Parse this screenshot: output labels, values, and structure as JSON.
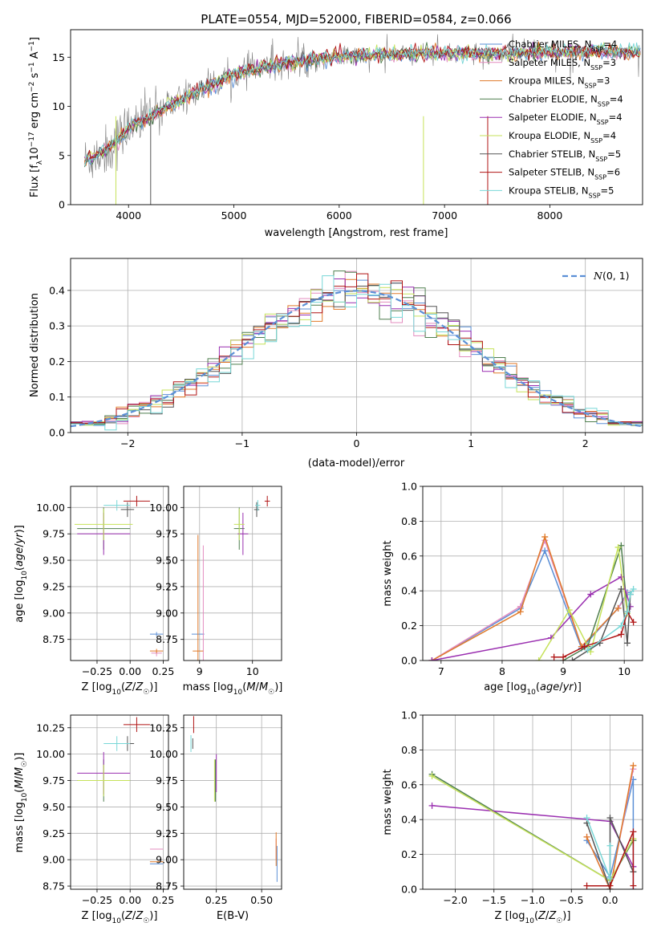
{
  "figure": {
    "title": "PLATE=0554, MJD=52000, FIBERID=0584, z=0.066"
  },
  "colors": {
    "chabrier_miles": "#5b8fd6",
    "salpeter_miles": "#e38cbf",
    "kroupa_miles": "#e07a2a",
    "chabrier_elodie": "#4f7f4f",
    "salpeter_elodie": "#9a2fb0",
    "kroupa_elodie": "#c6e25a",
    "chabrier_stelib": "#555555",
    "salpeter_stelib": "#b01515",
    "kroupa_stelib": "#78d7d7",
    "data": "#7f7f7f",
    "gaussian": "#5b8fd6"
  },
  "chart_data": [
    {
      "type": "line",
      "id": "spectrum",
      "xlabel": "wavelength [Angstrom, rest frame]",
      "ylabel": "Flux [f_λ 10^-17 erg cm^-2 s^-1 A^-1]",
      "xlim": [
        3450,
        8880
      ],
      "ylim": [
        0,
        17.8
      ],
      "xticks": [
        4000,
        5000,
        6000,
        7000,
        8000
      ],
      "yticks": [
        0,
        5,
        10,
        15
      ],
      "grid": false,
      "legend_position": "top-right",
      "legend": [
        {
          "label": "Chabrier MILES, N_SSP=4",
          "color_key": "chabrier_miles"
        },
        {
          "label": "Salpeter MILES, N_SSP=3",
          "color_key": "salpeter_miles"
        },
        {
          "label": "Kroupa MILES, N_SSP=3",
          "color_key": "kroupa_miles"
        },
        {
          "label": "Chabrier ELODIE, N_SSP=4",
          "color_key": "chabrier_elodie"
        },
        {
          "label": "Salpeter ELODIE, N_SSP=4",
          "color_key": "salpeter_elodie"
        },
        {
          "label": "Kroupa ELODIE, N_SSP=4",
          "color_key": "kroupa_elodie"
        },
        {
          "label": "Chabrier STELIB, N_SSP=5",
          "color_key": "chabrier_stelib"
        },
        {
          "label": "Salpeter STELIB, N_SSP=6",
          "color_key": "salpeter_stelib"
        },
        {
          "label": "Kroupa STELIB, N_SSP=5",
          "color_key": "kroupa_stelib"
        }
      ],
      "continuum": {
        "x": [
          3600,
          3800,
          4000,
          4200,
          4400,
          4600,
          4800,
          5000,
          5200,
          5500,
          5800,
          6000,
          6200,
          6500,
          7000,
          7500,
          8000,
          8500,
          8800
        ],
        "y": [
          4.5,
          5.6,
          7.8,
          8.9,
          10.2,
          11.2,
          12.3,
          13.2,
          13.8,
          14.4,
          14.8,
          15.0,
          15.2,
          15.3,
          15.4,
          15.4,
          15.5,
          15.6,
          15.6
        ]
      }
    },
    {
      "type": "bar",
      "id": "residuals",
      "xlabel": "(data-model)/error",
      "ylabel": "Normed distribution",
      "xlim": [
        -2.5,
        2.5
      ],
      "ylim": [
        0,
        0.49
      ],
      "xticks": [
        -2,
        -1,
        0,
        1,
        2
      ],
      "yticks": [
        0.0,
        0.1,
        0.2,
        0.3,
        0.4
      ],
      "grid": true,
      "legend_position": "top-right",
      "legend": [
        {
          "label": "N(0, 1)",
          "color_key": "gaussian",
          "style": "dashed"
        }
      ],
      "bin_width": 0.1,
      "bin_range": [
        -2.5,
        2.5
      ]
    },
    {
      "type": "scatter",
      "id": "age_vs_Z",
      "xlabel": "Z [log10(Z/Z☉)]",
      "ylabel": "age  [log10(age/yr)]",
      "xlim": [
        -0.45,
        0.29
      ],
      "ylim": [
        8.55,
        10.2
      ],
      "xticks": [
        -0.25,
        0.0,
        0.25
      ],
      "yticks": [
        8.75,
        9.0,
        9.25,
        9.5,
        9.75,
        10.0
      ],
      "grid": true,
      "points": [
        {
          "model": "chabrier_miles",
          "x": 0.2,
          "y": 8.8,
          "xerr": 0.05,
          "yerr": 0.02
        },
        {
          "model": "salpeter_miles",
          "x": 0.2,
          "y": 8.62,
          "xerr": 0.04,
          "yerr": 0.03
        },
        {
          "model": "kroupa_miles",
          "x": 0.2,
          "y": 8.64,
          "xerr": 0.05,
          "yerr": 0.02
        },
        {
          "model": "chabrier_elodie",
          "x": -0.2,
          "y": 9.8,
          "xerr": 0.2,
          "yerr": 0.2
        },
        {
          "model": "salpeter_elodie",
          "x": -0.2,
          "y": 9.75,
          "xerr": 0.2,
          "yerr": 0.2
        },
        {
          "model": "kroupa_elodie",
          "x": -0.2,
          "y": 9.84,
          "xerr": 0.22,
          "yerr": 0.15
        },
        {
          "model": "chabrier_stelib",
          "x": -0.02,
          "y": 9.98,
          "xerr": 0.05,
          "yerr": 0.07
        },
        {
          "model": "salpeter_stelib",
          "x": 0.05,
          "y": 10.06,
          "xerr": 0.1,
          "yerr": 0.05
        },
        {
          "model": "kroupa_stelib",
          "x": -0.1,
          "y": 10.02,
          "xerr": 0.1,
          "yerr": 0.05
        }
      ]
    },
    {
      "type": "scatter",
      "id": "age_vs_mass",
      "xlabel": "mass [log10(M/M☉)]",
      "ylabel": "",
      "xlim": [
        8.7,
        10.55
      ],
      "ylim": [
        8.55,
        10.2
      ],
      "xticks": [
        9,
        10
      ],
      "yticks": [
        8.75,
        9.0,
        9.25,
        9.5,
        9.75,
        10.0
      ],
      "grid": true,
      "points": [
        {
          "model": "chabrier_miles",
          "x": 8.97,
          "y": 8.8,
          "xerr": 0.12,
          "yerr": 0.0
        },
        {
          "model": "salpeter_miles",
          "x": 9.07,
          "y": 8.62,
          "xerr": 0.0,
          "yerr": 1.02
        },
        {
          "model": "kroupa_miles",
          "x": 8.97,
          "y": 8.64,
          "xerr": 0.1,
          "yerr": 1.1
        },
        {
          "model": "chabrier_elodie",
          "x": 9.75,
          "y": 9.8,
          "xerr": 0.1,
          "yerr": 0.2
        },
        {
          "model": "salpeter_elodie",
          "x": 9.82,
          "y": 9.75,
          "xerr": 0.1,
          "yerr": 0.2
        },
        {
          "model": "kroupa_elodie",
          "x": 9.75,
          "y": 9.84,
          "xerr": 0.1,
          "yerr": 0.15
        },
        {
          "model": "chabrier_stelib",
          "x": 10.08,
          "y": 9.98,
          "xerr": 0.05,
          "yerr": 0.07
        },
        {
          "model": "salpeter_stelib",
          "x": 10.28,
          "y": 10.06,
          "xerr": 0.05,
          "yerr": 0.05
        },
        {
          "model": "kroupa_stelib",
          "x": 10.1,
          "y": 10.02,
          "xerr": 0.05,
          "yerr": 0.05
        }
      ]
    },
    {
      "type": "line",
      "id": "mass_weight_vs_age",
      "xlabel": "age  [log10(age/yr)]",
      "ylabel": "mass weight",
      "xlim": [
        6.7,
        10.3
      ],
      "ylim": [
        0,
        1.0
      ],
      "xticks": [
        7,
        8,
        9,
        10
      ],
      "yticks": [
        0.0,
        0.2,
        0.4,
        0.6,
        0.8,
        1.0
      ],
      "grid": true,
      "series": [
        {
          "model": "chabrier_miles",
          "x": [
            6.85,
            8.3,
            8.7,
            9.3,
            9.9,
            10.05
          ],
          "y": [
            0.0,
            0.3,
            0.63,
            0.07,
            0.3,
            0.39
          ]
        },
        {
          "model": "salpeter_miles",
          "x": [
            6.85,
            8.3,
            8.7,
            9.3,
            9.9,
            10.05
          ],
          "y": [
            0.0,
            0.31,
            0.69,
            0.08,
            0.3,
            0.38
          ]
        },
        {
          "model": "kroupa_miles",
          "x": [
            6.85,
            8.3,
            8.7,
            9.3,
            9.9
          ],
          "y": [
            0.0,
            0.28,
            0.71,
            0.08,
            0.3
          ]
        },
        {
          "model": "chabrier_elodie",
          "x": [
            9.0,
            9.4,
            9.95,
            10.05
          ],
          "y": [
            0.0,
            0.08,
            0.66,
            0.28
          ]
        },
        {
          "model": "salpeter_elodie",
          "x": [
            6.85,
            8.8,
            9.45,
            9.95,
            10.1
          ],
          "y": [
            0.0,
            0.13,
            0.38,
            0.48,
            0.31
          ]
        },
        {
          "model": "kroupa_elodie",
          "x": [
            8.6,
            9.1,
            9.45,
            9.9,
            10.05
          ],
          "y": [
            0.0,
            0.29,
            0.05,
            0.65,
            0.27
          ]
        },
        {
          "model": "chabrier_stelib",
          "x": [
            9.15,
            9.6,
            9.95,
            10.05,
            10.1
          ],
          "y": [
            0.0,
            0.1,
            0.41,
            0.1,
            0.38
          ]
        },
        {
          "model": "salpeter_stelib",
          "x": [
            8.85,
            9.0,
            9.35,
            9.95,
            10.05,
            10.15
          ],
          "y": [
            0.02,
            0.02,
            0.08,
            0.15,
            0.28,
            0.22
          ]
        },
        {
          "model": "kroupa_stelib",
          "x": [
            9.4,
            9.95,
            10.05,
            10.1,
            10.15
          ],
          "y": [
            0.06,
            0.2,
            0.28,
            0.38,
            0.41
          ]
        }
      ]
    },
    {
      "type": "scatter",
      "id": "mass_vs_Z",
      "xlabel": "Z [log10(Z/Z☉)]",
      "ylabel": "mass [log10(M/M☉)]",
      "xlim": [
        -0.45,
        0.29
      ],
      "ylim": [
        8.72,
        10.37
      ],
      "xticks": [
        -0.25,
        0.0,
        0.25
      ],
      "yticks": [
        8.75,
        9.0,
        9.25,
        9.5,
        9.75,
        10.0,
        10.25
      ],
      "grid": true,
      "points": [
        {
          "model": "chabrier_miles",
          "x": 0.2,
          "y": 8.96,
          "xerr": 0.05,
          "yerr": 0.0
        },
        {
          "model": "salpeter_miles",
          "x": 0.2,
          "y": 9.1,
          "xerr": 0.05,
          "yerr": 0.0
        },
        {
          "model": "kroupa_miles",
          "x": 0.2,
          "y": 8.98,
          "xerr": 0.05,
          "yerr": 0.0
        },
        {
          "model": "chabrier_elodie",
          "x": -0.2,
          "y": 9.75,
          "xerr": 0.2,
          "yerr": 0.2
        },
        {
          "model": "salpeter_elodie",
          "x": -0.2,
          "y": 9.82,
          "xerr": 0.2,
          "yerr": 0.2
        },
        {
          "model": "kroupa_elodie",
          "x": -0.2,
          "y": 9.75,
          "xerr": 0.2,
          "yerr": 0.15
        },
        {
          "model": "chabrier_stelib",
          "x": -0.02,
          "y": 10.1,
          "xerr": 0.05,
          "yerr": 0.07
        },
        {
          "model": "salpeter_stelib",
          "x": 0.05,
          "y": 10.28,
          "xerr": 0.1,
          "yerr": 0.07
        },
        {
          "model": "kroupa_stelib",
          "x": -0.1,
          "y": 10.1,
          "xerr": 0.1,
          "yerr": 0.07
        }
      ]
    },
    {
      "type": "scatter",
      "id": "mass_vs_ebv",
      "xlabel": "E(B-V)",
      "ylabel": "",
      "xlim": [
        0.07,
        0.61
      ],
      "ylim": [
        8.72,
        10.37
      ],
      "xticks": [
        0.25,
        0.5
      ],
      "yticks": [
        8.75,
        9.0,
        9.25,
        9.5,
        9.75,
        10.0,
        10.25
      ],
      "grid": true,
      "points": [
        {
          "model": "chabrier_miles",
          "x": 0.585,
          "y": 8.96,
          "xerr": 0.0,
          "yerr": 0.17
        },
        {
          "model": "salpeter_miles",
          "x": 0.58,
          "y": 9.1,
          "xerr": 0.0,
          "yerr": 0.1
        },
        {
          "model": "kroupa_miles",
          "x": 0.58,
          "y": 9.1,
          "xerr": 0.0,
          "yerr": 0.16
        },
        {
          "model": "chabrier_elodie",
          "x": 0.245,
          "y": 9.75,
          "xerr": 0.0,
          "yerr": 0.2
        },
        {
          "model": "salpeter_elodie",
          "x": 0.25,
          "y": 9.82,
          "xerr": 0.0,
          "yerr": 0.18
        },
        {
          "model": "kroupa_elodie",
          "x": 0.24,
          "y": 9.75,
          "xerr": 0.0,
          "yerr": 0.2
        },
        {
          "model": "chabrier_stelib",
          "x": 0.12,
          "y": 10.1,
          "xerr": 0.0,
          "yerr": 0.05
        },
        {
          "model": "salpeter_stelib",
          "x": 0.125,
          "y": 10.28,
          "xerr": 0.0,
          "yerr": 0.08
        },
        {
          "model": "kroupa_stelib",
          "x": 0.11,
          "y": 10.1,
          "xerr": 0.0,
          "yerr": 0.08
        }
      ]
    },
    {
      "type": "line",
      "id": "mass_weight_vs_Z",
      "xlabel": "Z [log10(Z/Z☉)]",
      "ylabel": "mass weight",
      "xlim": [
        -2.42,
        0.42
      ],
      "ylim": [
        0,
        1.0
      ],
      "xticks": [
        -2.0,
        -1.5,
        -1.0,
        -0.5,
        0.0
      ],
      "yticks": [
        0.0,
        0.2,
        0.4,
        0.6,
        0.8,
        1.0
      ],
      "grid": true,
      "series": [
        {
          "model": "chabrier_miles",
          "x": [
            -0.3,
            0.0,
            0.3,
            0.3
          ],
          "y": [
            0.28,
            0.07,
            0.63,
            0.0
          ]
        },
        {
          "model": "salpeter_miles",
          "x": [
            -0.3,
            0.0,
            0.3
          ],
          "y": [
            0.3,
            0.0,
            0.69
          ]
        },
        {
          "model": "kroupa_miles",
          "x": [
            -0.3,
            0.0,
            0.3
          ],
          "y": [
            0.3,
            0.0,
            0.71
          ]
        },
        {
          "model": "chabrier_elodie",
          "x": [
            -2.3,
            0.0,
            0.3
          ],
          "y": [
            0.66,
            0.05,
            0.28
          ]
        },
        {
          "model": "salpeter_elodie",
          "x": [
            -2.3,
            0.0,
            0.3
          ],
          "y": [
            0.48,
            0.39,
            0.13
          ]
        },
        {
          "model": "kroupa_elodie",
          "x": [
            -2.3,
            0.0,
            0.3
          ],
          "y": [
            0.65,
            0.05,
            0.29
          ]
        },
        {
          "model": "chabrier_stelib",
          "x": [
            -0.3,
            0.0,
            0.0,
            0.3
          ],
          "y": [
            0.38,
            0.0,
            0.41,
            0.1
          ]
        },
        {
          "model": "salpeter_stelib",
          "x": [
            -0.3,
            0.0,
            0.3,
            0.3
          ],
          "y": [
            0.02,
            0.02,
            0.33,
            0.02
          ]
        },
        {
          "model": "kroupa_stelib",
          "x": [
            -0.3,
            0.0,
            0.0
          ],
          "y": [
            0.41,
            0.06,
            0.25
          ]
        }
      ]
    }
  ]
}
